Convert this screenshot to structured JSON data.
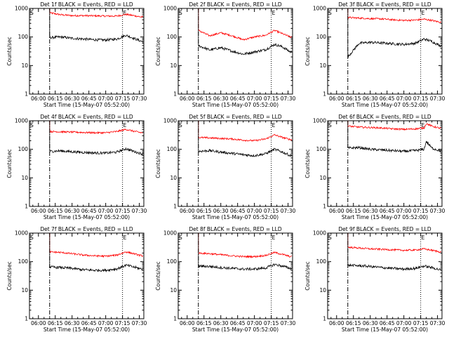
{
  "chart_data": [
    {
      "type": "line",
      "title": "Det 1f BLACK = Events, RED = LLD",
      "xlabel": "Start Time (15-May-07 05:52:00)",
      "ylabel": "Counts/sec",
      "yscale": "log",
      "ylim": [
        1,
        1000
      ],
      "ytick_labels": [
        "1",
        "10",
        "100",
        "1000"
      ],
      "xtick_labels": [
        "06:00",
        "06:15",
        "06:30",
        "06:45",
        "07:00",
        "07:15",
        "07:30"
      ],
      "xtick_minutes": [
        0,
        15,
        30,
        45,
        60,
        75,
        90
      ],
      "xlim_minutes": [
        -8,
        94
      ],
      "markers": [
        {
          "label": "S",
          "minute": -8,
          "style": "dashdot"
        },
        {
          "label": "",
          "minute": 10,
          "style": "dashdot"
        },
        {
          "label": "E",
          "minute": 75,
          "style": "dotted"
        }
      ],
      "data_start_minute": 10,
      "series": [
        {
          "name": "RED = LLD",
          "color": "#ff0000",
          "x": [
            10,
            20,
            30,
            40,
            50,
            60,
            70,
            78,
            85,
            92
          ],
          "y": [
            700,
            600,
            560,
            560,
            550,
            540,
            540,
            620,
            560,
            500
          ]
        },
        {
          "name": "BLACK = Events",
          "color": "#000000",
          "x": [
            10,
            20,
            30,
            40,
            50,
            60,
            70,
            78,
            85,
            92
          ],
          "y": [
            95,
            100,
            90,
            85,
            80,
            78,
            85,
            115,
            90,
            70
          ]
        }
      ]
    },
    {
      "type": "line",
      "title": "Det 2f BLACK = Events, RED = LLD",
      "xlabel": "Start Time (15-May-07 05:52:00)",
      "ylabel": "Counts/sec",
      "yscale": "log",
      "ylim": [
        1,
        1000
      ],
      "ytick_labels": [
        "1",
        "10",
        "100",
        "1000"
      ],
      "xtick_labels": [
        "06:00",
        "06:15",
        "06:30",
        "06:45",
        "07:00",
        "07:15",
        "07:30"
      ],
      "xtick_minutes": [
        0,
        15,
        30,
        45,
        60,
        75,
        90
      ],
      "xlim_minutes": [
        -8,
        94
      ],
      "markers": [
        {
          "label": "S",
          "minute": -8,
          "style": "dashdot"
        },
        {
          "label": "",
          "minute": 10,
          "style": "dashdot"
        },
        {
          "label": "E",
          "minute": 75,
          "style": "dotted"
        }
      ],
      "data_start_minute": 10,
      "series": [
        {
          "name": "RED = LLD",
          "color": "#ff0000",
          "x": [
            10,
            20,
            30,
            40,
            50,
            60,
            70,
            78,
            85,
            92
          ],
          "y": [
            170,
            110,
            140,
            110,
            80,
            100,
            115,
            170,
            130,
            100
          ]
        },
        {
          "name": "BLACK = Events",
          "color": "#000000",
          "x": [
            10,
            20,
            30,
            40,
            50,
            60,
            70,
            78,
            85,
            92
          ],
          "y": [
            50,
            35,
            42,
            32,
            25,
            30,
            36,
            55,
            45,
            30
          ]
        }
      ]
    },
    {
      "type": "line",
      "title": "Det 3f BLACK = Events, RED = LLD",
      "xlabel": "Start Time (15-May-07 05:52:00)",
      "ylabel": "Counts/sec",
      "yscale": "log",
      "ylim": [
        1,
        1000
      ],
      "ytick_labels": [
        "1",
        "10",
        "100",
        "1000"
      ],
      "xtick_labels": [
        "06:00",
        "06:15",
        "06:30",
        "06:45",
        "07:00",
        "07:15",
        "07:30"
      ],
      "xtick_minutes": [
        0,
        15,
        30,
        45,
        60,
        75,
        90
      ],
      "xlim_minutes": [
        -8,
        94
      ],
      "markers": [
        {
          "label": "S",
          "minute": -8,
          "style": "dashdot"
        },
        {
          "label": "",
          "minute": 10,
          "style": "dashdot"
        },
        {
          "label": "E",
          "minute": 75,
          "style": "dotted"
        }
      ],
      "data_start_minute": 10,
      "series": [
        {
          "name": "RED = LLD",
          "color": "#ff0000",
          "x": [
            10,
            20,
            30,
            40,
            50,
            60,
            70,
            78,
            85,
            92
          ],
          "y": [
            480,
            460,
            440,
            430,
            400,
            380,
            390,
            420,
            380,
            330
          ]
        },
        {
          "name": "BLACK = Events",
          "color": "#000000",
          "x": [
            10,
            20,
            30,
            40,
            50,
            60,
            70,
            78,
            85,
            92
          ],
          "y": [
            20,
            60,
            65,
            62,
            58,
            55,
            60,
            85,
            70,
            50
          ]
        }
      ]
    },
    {
      "type": "line",
      "title": "Det 4f BLACK = Events, RED = LLD",
      "xlabel": "Start Time (15-May-07 05:52:00)",
      "ylabel": "Counts/sec",
      "yscale": "log",
      "ylim": [
        1,
        1000
      ],
      "ytick_labels": [
        "1",
        "10",
        "100",
        "1000"
      ],
      "xtick_labels": [
        "06:00",
        "06:15",
        "06:30",
        "06:45",
        "07:00",
        "07:15",
        "07:30"
      ],
      "xtick_minutes": [
        0,
        15,
        30,
        45,
        60,
        75,
        90
      ],
      "xlim_minutes": [
        -8,
        94
      ],
      "markers": [
        {
          "label": "S",
          "minute": -8,
          "style": "dashdot"
        },
        {
          "label": "",
          "minute": 10,
          "style": "dashdot"
        },
        {
          "label": "E",
          "minute": 75,
          "style": "dotted"
        }
      ],
      "data_start_minute": 10,
      "series": [
        {
          "name": "RED = LLD",
          "color": "#ff0000",
          "x": [
            10,
            20,
            30,
            40,
            50,
            60,
            70,
            78,
            85,
            92
          ],
          "y": [
            420,
            410,
            400,
            390,
            380,
            380,
            420,
            500,
            430,
            380
          ]
        },
        {
          "name": "BLACK = Events",
          "color": "#000000",
          "x": [
            10,
            20,
            30,
            40,
            50,
            60,
            70,
            78,
            85,
            92
          ],
          "y": [
            85,
            88,
            82,
            78,
            75,
            74,
            80,
            105,
            85,
            70
          ]
        }
      ]
    },
    {
      "type": "line",
      "title": "Det 5f BLACK = Events, RED = LLD",
      "xlabel": "Start Time (15-May-07 05:52:00)",
      "ylabel": "Counts/sec",
      "yscale": "log",
      "ylim": [
        1,
        1000
      ],
      "ytick_labels": [
        "1",
        "10",
        "100",
        "1000"
      ],
      "xtick_labels": [
        "06:00",
        "06:15",
        "06:30",
        "06:45",
        "07:00",
        "07:15",
        "07:30"
      ],
      "xtick_minutes": [
        0,
        15,
        30,
        45,
        60,
        75,
        90
      ],
      "xlim_minutes": [
        -8,
        94
      ],
      "markers": [
        {
          "label": "S",
          "minute": -8,
          "style": "dashdot"
        },
        {
          "label": "",
          "minute": 10,
          "style": "dashdot"
        },
        {
          "label": "E",
          "minute": 75,
          "style": "dotted"
        }
      ],
      "data_start_minute": 10,
      "series": [
        {
          "name": "RED = LLD",
          "color": "#ff0000",
          "x": [
            10,
            20,
            30,
            40,
            50,
            60,
            70,
            78,
            85,
            92
          ],
          "y": [
            260,
            250,
            240,
            230,
            210,
            200,
            230,
            320,
            260,
            220
          ]
        },
        {
          "name": "BLACK = Events",
          "color": "#000000",
          "x": [
            10,
            20,
            30,
            40,
            50,
            60,
            70,
            78,
            85,
            92
          ],
          "y": [
            85,
            90,
            80,
            72,
            65,
            60,
            70,
            100,
            80,
            60
          ]
        }
      ]
    },
    {
      "type": "line",
      "title": "Det 6f BLACK = Events, RED = LLD",
      "xlabel": "Start Time (15-May-07 05:52:00)",
      "ylabel": "Counts/sec",
      "yscale": "log",
      "ylim": [
        1,
        1000
      ],
      "ytick_labels": [
        "1",
        "10",
        "100",
        "1000"
      ],
      "xtick_labels": [
        "06:00",
        "06:15",
        "06:30",
        "06:45",
        "07:00",
        "07:15",
        "07:30"
      ],
      "xtick_minutes": [
        0,
        15,
        30,
        45,
        60,
        75,
        90
      ],
      "xlim_minutes": [
        -8,
        94
      ],
      "markers": [
        {
          "label": "S",
          "minute": -8,
          "style": "dashdot"
        },
        {
          "label": "",
          "minute": 10,
          "style": "dashdot"
        },
        {
          "label": "E",
          "minute": 75,
          "style": "dotted"
        }
      ],
      "data_start_minute": 10,
      "series": [
        {
          "name": "RED = LLD",
          "color": "#ff0000",
          "x": [
            10,
            20,
            30,
            40,
            50,
            60,
            70,
            78,
            80,
            85,
            92
          ],
          "y": [
            650,
            600,
            580,
            560,
            520,
            500,
            520,
            560,
            800,
            650,
            550
          ]
        },
        {
          "name": "BLACK = Events",
          "color": "#000000",
          "x": [
            10,
            20,
            30,
            40,
            50,
            60,
            70,
            78,
            80,
            85,
            92
          ],
          "y": [
            110,
            115,
            100,
            95,
            90,
            85,
            90,
            100,
            190,
            110,
            90
          ]
        }
      ]
    },
    {
      "type": "line",
      "title": "Det 7f BLACK = Events, RED = LLD",
      "xlabel": "Start Time (15-May-07 05:52:00)",
      "ylabel": "Counts/sec",
      "yscale": "log",
      "ylim": [
        1,
        1000
      ],
      "ytick_labels": [
        "1",
        "10",
        "100",
        "1000"
      ],
      "xtick_labels": [
        "06:00",
        "06:15",
        "06:30",
        "06:45",
        "07:00",
        "07:15",
        "07:30"
      ],
      "xtick_minutes": [
        0,
        15,
        30,
        45,
        60,
        75,
        90
      ],
      "xlim_minutes": [
        -8,
        94
      ],
      "markers": [
        {
          "label": "S",
          "minute": -8,
          "style": "dashdot"
        },
        {
          "label": "",
          "minute": 10,
          "style": "dashdot"
        },
        {
          "label": "E",
          "minute": 75,
          "style": "dotted"
        }
      ],
      "data_start_minute": 10,
      "series": [
        {
          "name": "RED = LLD",
          "color": "#ff0000",
          "x": [
            10,
            20,
            30,
            40,
            50,
            60,
            70,
            78,
            85,
            92
          ],
          "y": [
            220,
            210,
            190,
            170,
            160,
            155,
            170,
            220,
            190,
            160
          ]
        },
        {
          "name": "BLACK = Events",
          "color": "#000000",
          "x": [
            10,
            20,
            30,
            40,
            50,
            60,
            70,
            78,
            85,
            92
          ],
          "y": [
            65,
            62,
            58,
            52,
            50,
            50,
            56,
            75,
            65,
            55
          ]
        }
      ]
    },
    {
      "type": "line",
      "title": "Det 8f BLACK = Events, RED = LLD",
      "xlabel": "Start Time (15-May-07 05:52:00)",
      "ylabel": "Counts/sec",
      "yscale": "log",
      "ylim": [
        1,
        1000
      ],
      "ytick_labels": [
        "1",
        "10",
        "100",
        "1000"
      ],
      "xtick_labels": [
        "06:00",
        "06:15",
        "06:30",
        "06:45",
        "07:00",
        "07:15",
        "07:30"
      ],
      "xtick_minutes": [
        0,
        15,
        30,
        45,
        60,
        75,
        90
      ],
      "xlim_minutes": [
        -8,
        94
      ],
      "markers": [
        {
          "label": "S",
          "minute": -8,
          "style": "dashdot"
        },
        {
          "label": "",
          "minute": 10,
          "style": "dashdot"
        },
        {
          "label": "E",
          "minute": 75,
          "style": "dotted"
        }
      ],
      "data_start_minute": 10,
      "series": [
        {
          "name": "RED = LLD",
          "color": "#ff0000",
          "x": [
            10,
            20,
            30,
            40,
            50,
            60,
            70,
            78,
            85,
            92
          ],
          "y": [
            200,
            190,
            175,
            160,
            150,
            150,
            165,
            210,
            180,
            150
          ]
        },
        {
          "name": "BLACK = Events",
          "color": "#000000",
          "x": [
            10,
            20,
            30,
            40,
            50,
            60,
            70,
            78,
            85,
            92
          ],
          "y": [
            70,
            68,
            62,
            58,
            55,
            55,
            60,
            80,
            70,
            58
          ]
        }
      ]
    },
    {
      "type": "line",
      "title": "Det 9f BLACK = Events, RED = LLD",
      "xlabel": "Start Time (15-May-07 05:52:00)",
      "ylabel": "Counts/sec",
      "yscale": "log",
      "ylim": [
        1,
        1000
      ],
      "ytick_labels": [
        "1",
        "10",
        "100",
        "1000"
      ],
      "xtick_labels": [
        "06:00",
        "06:15",
        "06:30",
        "06:45",
        "07:00",
        "07:15",
        "07:30"
      ],
      "xtick_minutes": [
        0,
        15,
        30,
        45,
        60,
        75,
        90
      ],
      "xlim_minutes": [
        -8,
        94
      ],
      "markers": [
        {
          "label": "S",
          "minute": -8,
          "style": "dashdot"
        },
        {
          "label": "",
          "minute": 10,
          "style": "dashdot"
        },
        {
          "label": "E",
          "minute": 75,
          "style": "dotted"
        }
      ],
      "data_start_minute": 10,
      "series": [
        {
          "name": "RED = LLD",
          "color": "#ff0000",
          "x": [
            10,
            20,
            30,
            40,
            50,
            60,
            70,
            78,
            85,
            92
          ],
          "y": [
            320,
            300,
            280,
            270,
            260,
            250,
            255,
            280,
            250,
            220
          ]
        },
        {
          "name": "BLACK = Events",
          "color": "#000000",
          "x": [
            10,
            20,
            30,
            40,
            50,
            60,
            70,
            78,
            85,
            92
          ],
          "y": [
            75,
            72,
            68,
            62,
            58,
            55,
            58,
            70,
            62,
            52
          ]
        }
      ]
    }
  ]
}
